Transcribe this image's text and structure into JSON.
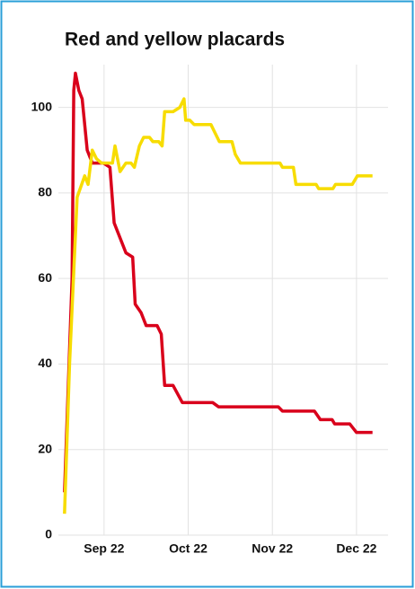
{
  "chart_data": {
    "type": "line",
    "title": "Red and yellow placards",
    "xlim": [
      8.5,
      12.3
    ],
    "xticks": [
      {
        "value": 9,
        "label": "Sep 22"
      },
      {
        "value": 10,
        "label": "Oct 22"
      },
      {
        "value": 11,
        "label": "Nov 22"
      },
      {
        "value": 12,
        "label": "Dec 22"
      }
    ],
    "ylim": [
      0,
      110
    ],
    "yticks": [
      0,
      20,
      40,
      60,
      80,
      100
    ],
    "grid": true,
    "series": [
      {
        "color": "#d9001b",
        "x": [
          8.53,
          8.62,
          8.64,
          8.66,
          8.7,
          8.74,
          8.8,
          8.86,
          8.99,
          9.07,
          9.12,
          9.26,
          9.34,
          9.37,
          9.44,
          9.5,
          9.63,
          9.68,
          9.72,
          9.82,
          9.93,
          10.29,
          10.36,
          11.07,
          11.12,
          11.5,
          11.57,
          11.71,
          11.74,
          11.92,
          12.0,
          12.19
        ],
        "values": [
          10,
          60,
          104,
          108,
          104,
          102,
          90,
          87,
          87,
          86,
          73,
          66,
          65,
          54,
          52,
          49,
          49,
          47,
          35,
          35,
          31,
          31,
          30,
          30,
          29,
          29,
          27,
          27,
          26,
          26,
          24,
          24
        ]
      },
      {
        "color": "#f7dc00",
        "x": [
          8.53,
          8.59,
          8.68,
          8.77,
          8.81,
          8.86,
          8.91,
          8.97,
          9.1,
          9.13,
          9.19,
          9.26,
          9.32,
          9.36,
          9.42,
          9.47,
          9.54,
          9.58,
          9.65,
          9.69,
          9.72,
          9.82,
          9.9,
          9.95,
          9.97,
          10.02,
          10.07,
          10.27,
          10.32,
          10.37,
          10.52,
          10.56,
          10.62,
          11.09,
          11.12,
          11.25,
          11.28,
          11.52,
          11.55,
          11.72,
          11.75,
          11.95,
          12.01,
          12.19
        ],
        "values": [
          5,
          40,
          79,
          84,
          82,
          90,
          88,
          87,
          87,
          91,
          85,
          87,
          87,
          86,
          91,
          93,
          93,
          92,
          92,
          91,
          99,
          99,
          100,
          102,
          97,
          97,
          96,
          96,
          94,
          92,
          92,
          89,
          87,
          87,
          86,
          86,
          82,
          82,
          81,
          81,
          82,
          82,
          84,
          84
        ]
      }
    ]
  }
}
